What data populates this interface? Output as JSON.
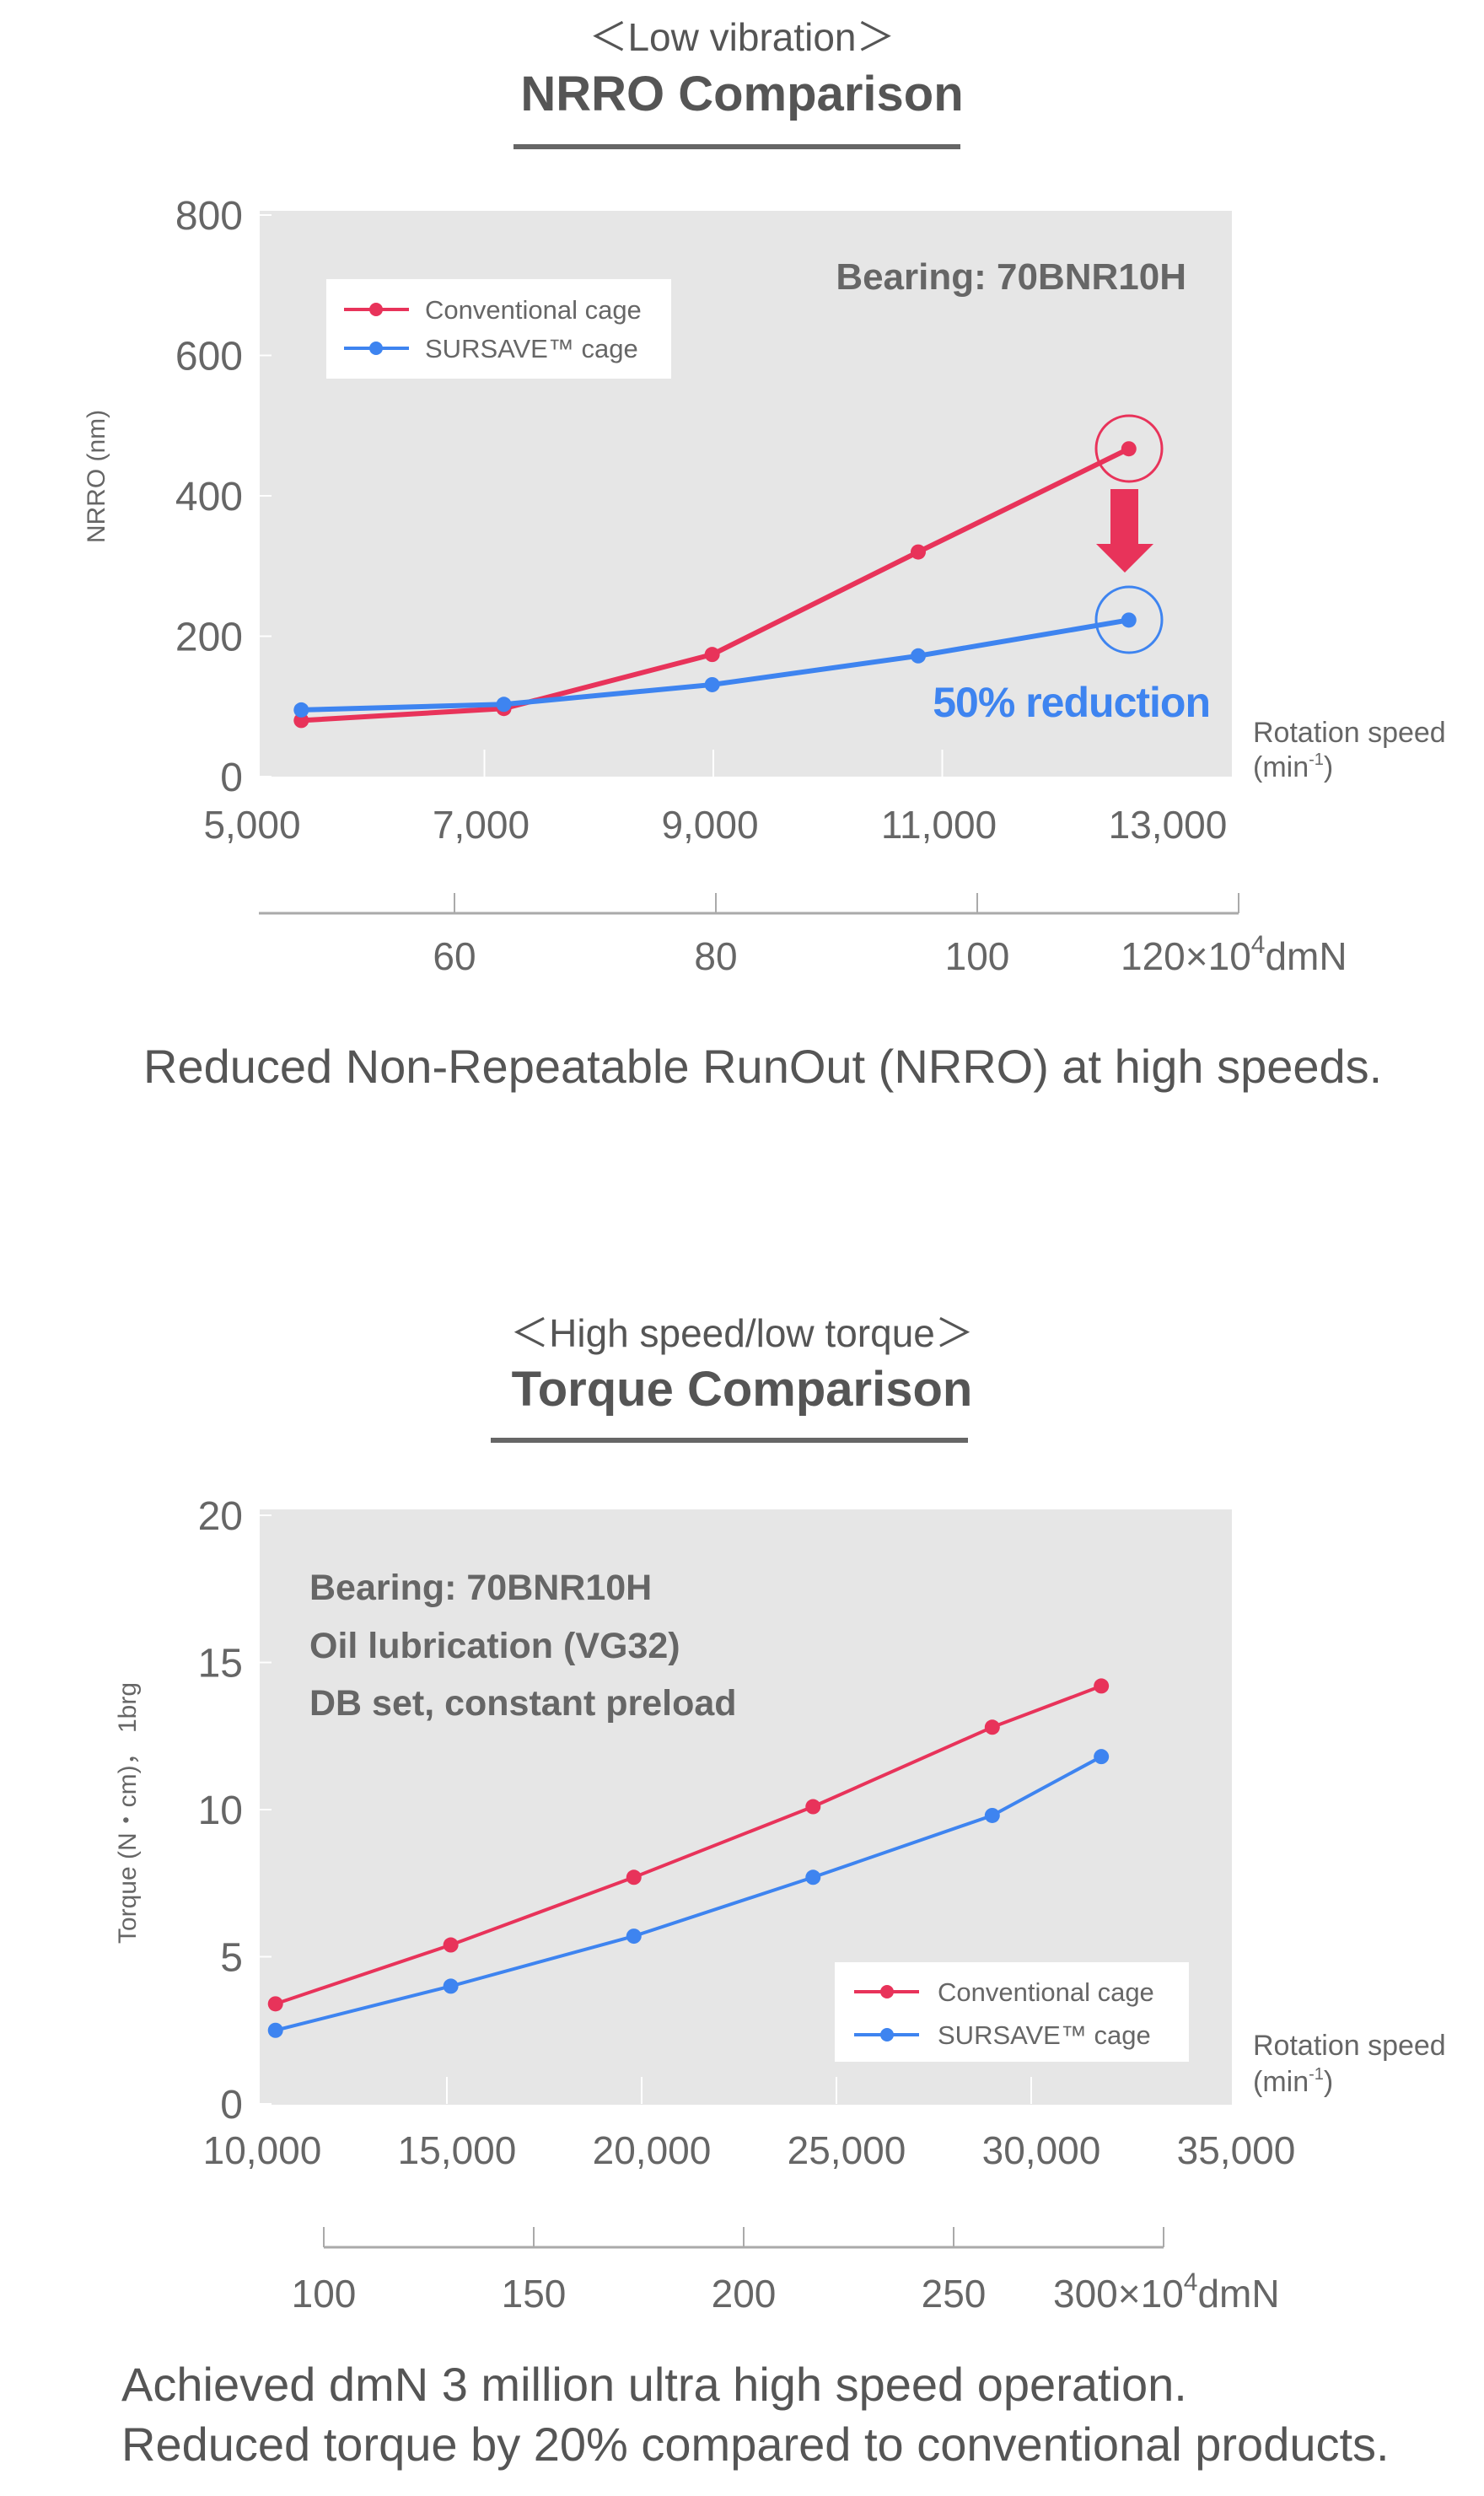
{
  "section1": {
    "subtitle": "＜Low vibration＞",
    "title": "NRRO Comparison",
    "caption": "Reduced Non-Repeatable RunOut (NRRO) at high speeds."
  },
  "section2": {
    "subtitle": "＜High speed/low torque＞",
    "title": "Torque Comparison",
    "caption_lines": [
      "Achieved dmN 3 million ultra high speed operation.",
      "Reduced torque by 20% compared to conventional products."
    ]
  },
  "colors": {
    "conventional": "#e8335a",
    "sursave": "#3e84f0",
    "plot_bg": "#e6e6e6",
    "text": "#666666"
  },
  "chart_data": [
    {
      "type": "line",
      "title": "NRRO Comparison",
      "ylabel": "NRRO (nm)",
      "xlabel": {
        "line1": "Rotation speed",
        "line2_pre": "(min",
        "line2_sup": "-1",
        "line2_post": ")"
      },
      "xlim": [
        5000,
        13000
      ],
      "ylim": [
        0,
        800
      ],
      "x_ticks": [
        "5,000",
        "7,000",
        "9,000",
        "11,000",
        "13,000"
      ],
      "x_tick_values": [
        5000,
        7000,
        9000,
        11000,
        13000
      ],
      "y_ticks": [
        "0",
        "200",
        "400",
        "600",
        "800"
      ],
      "y_tick_values": [
        0,
        200,
        400,
        600,
        800
      ],
      "secondary_x_axis": {
        "ticks": [
          "60",
          "80",
          "100",
          "120"
        ],
        "tick_values": [
          60,
          80,
          100,
          120
        ],
        "unit_pre": "×10",
        "unit_sup": "4",
        "unit_post": "dmN"
      },
      "annotation": "Bearing: 70BNR10H",
      "callout": "50% reduction",
      "legend_position": "top-left",
      "series": [
        {
          "name": "Conventional cage",
          "x": [
            5400,
            7170,
            8990,
            10790,
            12630
          ],
          "y": [
            80,
            97,
            174,
            320,
            467
          ]
        },
        {
          "name": "SURSAVE™ cage",
          "x": [
            5400,
            7170,
            8990,
            10790,
            12630
          ],
          "y": [
            95,
            103,
            131,
            172,
            223
          ]
        }
      ]
    },
    {
      "type": "line",
      "title": "Torque Comparison",
      "ylabel": "Torque (N・cm)， 1brg",
      "xlabel": {
        "line1": "Rotation speed",
        "line2_pre": "(min",
        "line2_sup": "-1",
        "line2_post": ")"
      },
      "xlim": [
        10000,
        35000
      ],
      "ylim": [
        0,
        20
      ],
      "x_ticks": [
        "10,000",
        "15,000",
        "20,000",
        "25,000",
        "30,000",
        "35,000"
      ],
      "x_tick_values": [
        10000,
        15000,
        20000,
        25000,
        30000,
        35000
      ],
      "y_ticks": [
        "0",
        "5",
        "10",
        "15",
        "20"
      ],
      "y_tick_values": [
        0,
        5,
        10,
        15,
        20
      ],
      "secondary_x_axis": {
        "ticks": [
          "100",
          "150",
          "200",
          "250",
          "300"
        ],
        "tick_values": [
          100,
          150,
          200,
          250,
          300
        ],
        "unit_pre": "×10",
        "unit_sup": "4",
        "unit_post": "dmN"
      },
      "annotation_lines": [
        "Bearing: 70BNR10H",
        "Oil lubrication (VG32)",
        "DB set, constant preload"
      ],
      "legend_position": "bottom-right",
      "series": [
        {
          "name": "Conventional cage",
          "x": [
            10600,
            15100,
            19800,
            24400,
            29000,
            31800
          ],
          "y": [
            3.4,
            5.4,
            7.7,
            10.1,
            12.8,
            14.2
          ]
        },
        {
          "name": "SURSAVE™ cage",
          "x": [
            10600,
            15100,
            19800,
            24400,
            29000,
            31800
          ],
          "y": [
            2.5,
            4.0,
            5.7,
            7.7,
            9.8,
            11.8
          ]
        }
      ]
    }
  ]
}
